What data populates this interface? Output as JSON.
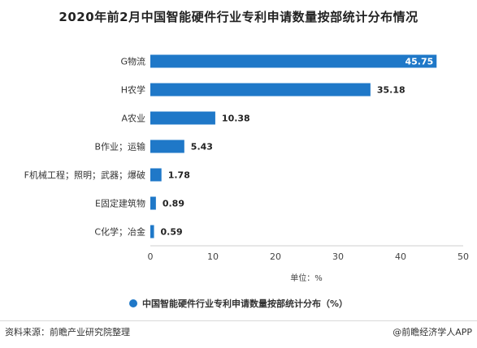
{
  "title": "2020年前2月中国智能硬件行业专利申请数量按部统计分布情况",
  "legend_label": "中国智能硬件行业专利申请数量按部统计分布（%）",
  "source_text": "资料来源：前瞻产业研究院整理",
  "brand_text": "@前瞻经济学人APP",
  "colors": {
    "bar": "#1f78c8",
    "last_label_bg": "#1f78c8"
  },
  "chart_data": {
    "type": "bar",
    "orientation": "horizontal",
    "categories": [
      "G物流",
      "H农学",
      "A农业",
      "B作业；运输",
      "F机械工程；照明；武器；爆破",
      "E固定建筑物",
      "C化学；冶金"
    ],
    "values": [
      45.75,
      35.18,
      10.38,
      5.43,
      1.78,
      0.89,
      0.59
    ],
    "value_labels": [
      "45.75",
      "35.18",
      "10.38",
      "5.43",
      "1.78",
      "0.89",
      "0.59"
    ],
    "xlim": [
      0,
      50
    ],
    "xticks": [
      "0",
      "10",
      "20",
      "30",
      "40",
      "50"
    ],
    "xlabel": "单位：%",
    "legend": [
      "中国智能硬件行业专利申请数量按部统计分布（%）"
    ],
    "grid": false
  }
}
